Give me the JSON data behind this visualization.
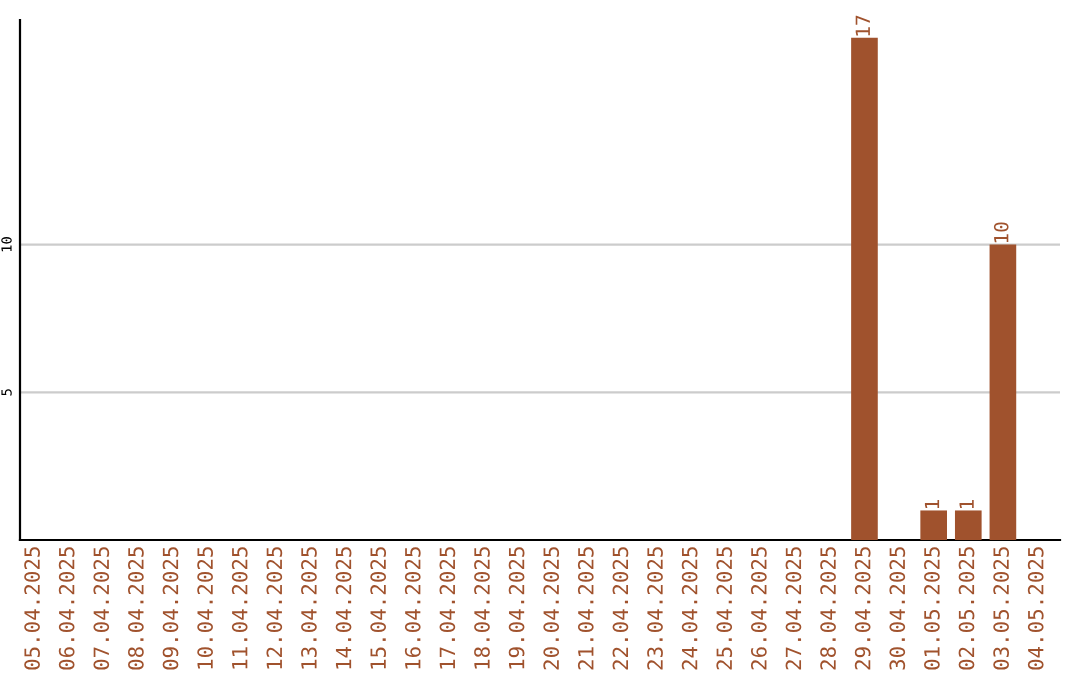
{
  "chart_data": {
    "type": "bar",
    "categories": [
      "05.04.2025",
      "06.04.2025",
      "07.04.2025",
      "08.04.2025",
      "09.04.2025",
      "10.04.2025",
      "11.04.2025",
      "12.04.2025",
      "13.04.2025",
      "14.04.2025",
      "15.04.2025",
      "16.04.2025",
      "17.04.2025",
      "18.04.2025",
      "19.04.2025",
      "20.04.2025",
      "21.04.2025",
      "22.04.2025",
      "23.04.2025",
      "24.04.2025",
      "25.04.2025",
      "26.04.2025",
      "27.04.2025",
      "28.04.2025",
      "29.04.2025",
      "30.04.2025",
      "01.05.2025",
      "02.05.2025",
      "03.05.2025",
      "04.05.2025"
    ],
    "values": [
      0,
      0,
      0,
      0,
      0,
      0,
      0,
      0,
      0,
      0,
      0,
      0,
      0,
      0,
      0,
      0,
      0,
      0,
      0,
      0,
      0,
      0,
      0,
      0,
      17,
      0,
      1,
      1,
      10,
      0
    ],
    "value_labels": [
      null,
      null,
      null,
      null,
      null,
      null,
      null,
      null,
      null,
      null,
      null,
      null,
      null,
      null,
      null,
      null,
      null,
      null,
      null,
      null,
      null,
      null,
      null,
      null,
      "17",
      null,
      "1",
      "1",
      "10",
      null
    ],
    "color": "#a0522d",
    "ylim": [
      0,
      17.6
    ],
    "yticks": [
      5,
      10
    ],
    "grid": "y"
  }
}
